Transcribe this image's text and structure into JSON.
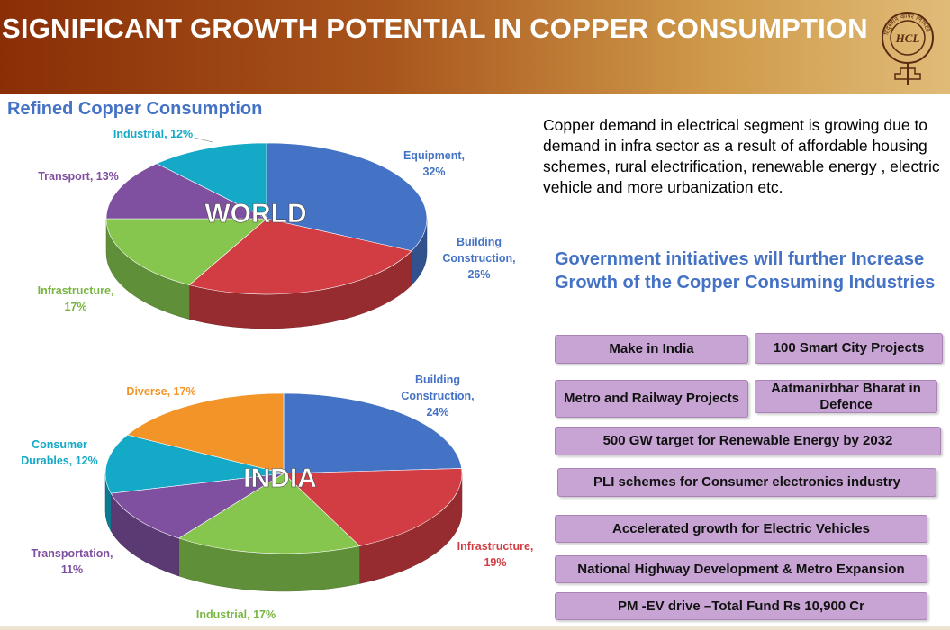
{
  "header": {
    "title": "SIGNIFICANT GROWTH POTENTIAL IN COPPER CONSUMPTION"
  },
  "logo": {
    "line1": "हिंदुस्तान कॉपर लिमिटेड",
    "monogram": "HCL"
  },
  "colors": {
    "blue": "#4472c4",
    "red": "#d13d43",
    "green": "#86c64f",
    "purple": "#7f4fa0",
    "teal": "#14a9c7",
    "orange": "#f39429",
    "initiative": "#c7a4d4"
  },
  "left": {
    "title": "Refined Copper Consumption"
  },
  "chart_data": [
    {
      "type": "pie",
      "title": "WORLD",
      "slices": [
        {
          "label": "Equipment,",
          "value_label": "32%",
          "value": 32,
          "color": "#4472c4"
        },
        {
          "label": "Building",
          "label2": "Construction,",
          "value_label": "26%",
          "value": 26,
          "color": "#d13d43"
        },
        {
          "label": "Infrastructure,",
          "value_label": "17%",
          "value": 17,
          "color": "#86c64f"
        },
        {
          "label": "Transport, 13%",
          "value": 13,
          "color": "#7f4fa0"
        },
        {
          "label": "Industrial, 12%",
          "value": 12,
          "color": "#14a9c7"
        }
      ]
    },
    {
      "type": "pie",
      "title": "INDIA",
      "slices": [
        {
          "label": "Building",
          "label2": "Construction,",
          "value_label": "24%",
          "value": 24,
          "color": "#4472c4"
        },
        {
          "label": "Infrastructure,",
          "value_label": "19%",
          "value": 19,
          "color": "#d13d43"
        },
        {
          "label": "Industrial, 17%",
          "value": 17,
          "color": "#86c64f"
        },
        {
          "label": "Transportation,",
          "value_label": "11%",
          "value": 11,
          "color": "#7f4fa0"
        },
        {
          "label": "Consumer",
          "label2": "Durables, 12%",
          "value": 12,
          "color": "#14a9c7"
        },
        {
          "label": "Diverse, 17%",
          "value": 17,
          "color": "#f39429"
        }
      ]
    }
  ],
  "right": {
    "description": "Copper demand in electrical segment is growing due to demand in infra sector as a result of affordable housing schemes, rural electrification, renewable energy , electric vehicle and more urbanization etc.",
    "gov_title": "Government initiatives will further Increase Growth of the Copper Consuming Industries",
    "initiatives": [
      "Make in India",
      "100 Smart City Projects",
      "Metro and Railway Projects",
      "Aatmanirbhar Bharat in Defence",
      "500 GW target for Renewable Energy  by 2032",
      "PLI schemes for Consumer electronics industry",
      "Accelerated growth for Electric Vehicles",
      "National Highway Development & Metro Expansion",
      "PM -EV drive –Total Fund Rs 10,900 Cr"
    ]
  }
}
